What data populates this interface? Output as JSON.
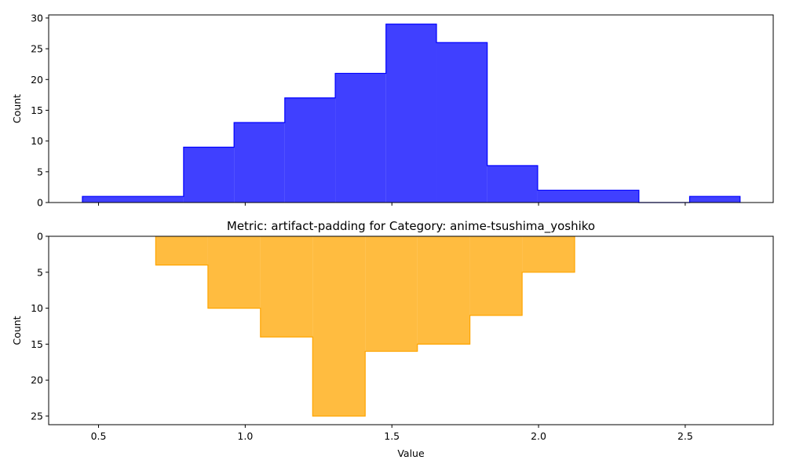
{
  "chart_data": [
    {
      "type": "histogram",
      "title": "",
      "xlabel": "",
      "ylabel": "Count",
      "ylim": [
        0,
        30.5
      ],
      "xlim": [
        0.33,
        2.8
      ],
      "yticks": [
        0,
        5,
        10,
        15,
        20,
        25,
        30
      ],
      "xticks": [
        0.5,
        1.0,
        1.5,
        2.0,
        2.5
      ],
      "show_xtick_labels": false,
      "inverted_y": false,
      "color": "#0000ff",
      "bins": [
        {
          "x0": 0.445,
          "x1": 0.79,
          "count": 1
        },
        {
          "x0": 0.79,
          "x1": 0.962,
          "count": 9
        },
        {
          "x0": 0.962,
          "x1": 1.135,
          "count": 13
        },
        {
          "x0": 1.135,
          "x1": 1.307,
          "count": 17
        },
        {
          "x0": 1.307,
          "x1": 1.48,
          "count": 21
        },
        {
          "x0": 1.48,
          "x1": 1.652,
          "count": 29
        },
        {
          "x0": 1.652,
          "x1": 1.825,
          "count": 26
        },
        {
          "x0": 1.825,
          "x1": 1.997,
          "count": 6
        },
        {
          "x0": 1.997,
          "x1": 2.342,
          "count": 2
        },
        {
          "x0": 2.342,
          "x1": 2.515,
          "count": 0
        },
        {
          "x0": 2.515,
          "x1": 2.687,
          "count": 1
        }
      ]
    },
    {
      "type": "histogram",
      "title": "Metric: artifact-padding for Category: anime-tsushima_yoshiko",
      "xlabel": "Value",
      "ylabel": "Count",
      "ylim": [
        0,
        26.2
      ],
      "xlim": [
        0.33,
        2.8
      ],
      "yticks": [
        0,
        5,
        10,
        15,
        20,
        25
      ],
      "xticks": [
        0.5,
        1.0,
        1.5,
        2.0,
        2.5
      ],
      "xtick_labels": [
        "0.5",
        "1.0",
        "1.5",
        "2.0",
        "2.5"
      ],
      "show_xtick_labels": true,
      "inverted_y": true,
      "color": "#ffa500",
      "bins": [
        {
          "x0": 0.695,
          "x1": 0.873,
          "count": 4
        },
        {
          "x0": 0.873,
          "x1": 1.052,
          "count": 10
        },
        {
          "x0": 1.052,
          "x1": 1.23,
          "count": 14
        },
        {
          "x0": 1.23,
          "x1": 1.409,
          "count": 25
        },
        {
          "x0": 1.409,
          "x1": 1.587,
          "count": 16
        },
        {
          "x0": 1.587,
          "x1": 1.766,
          "count": 15
        },
        {
          "x0": 1.766,
          "x1": 1.944,
          "count": 11
        },
        {
          "x0": 1.944,
          "x1": 2.123,
          "count": 5
        }
      ]
    }
  ]
}
